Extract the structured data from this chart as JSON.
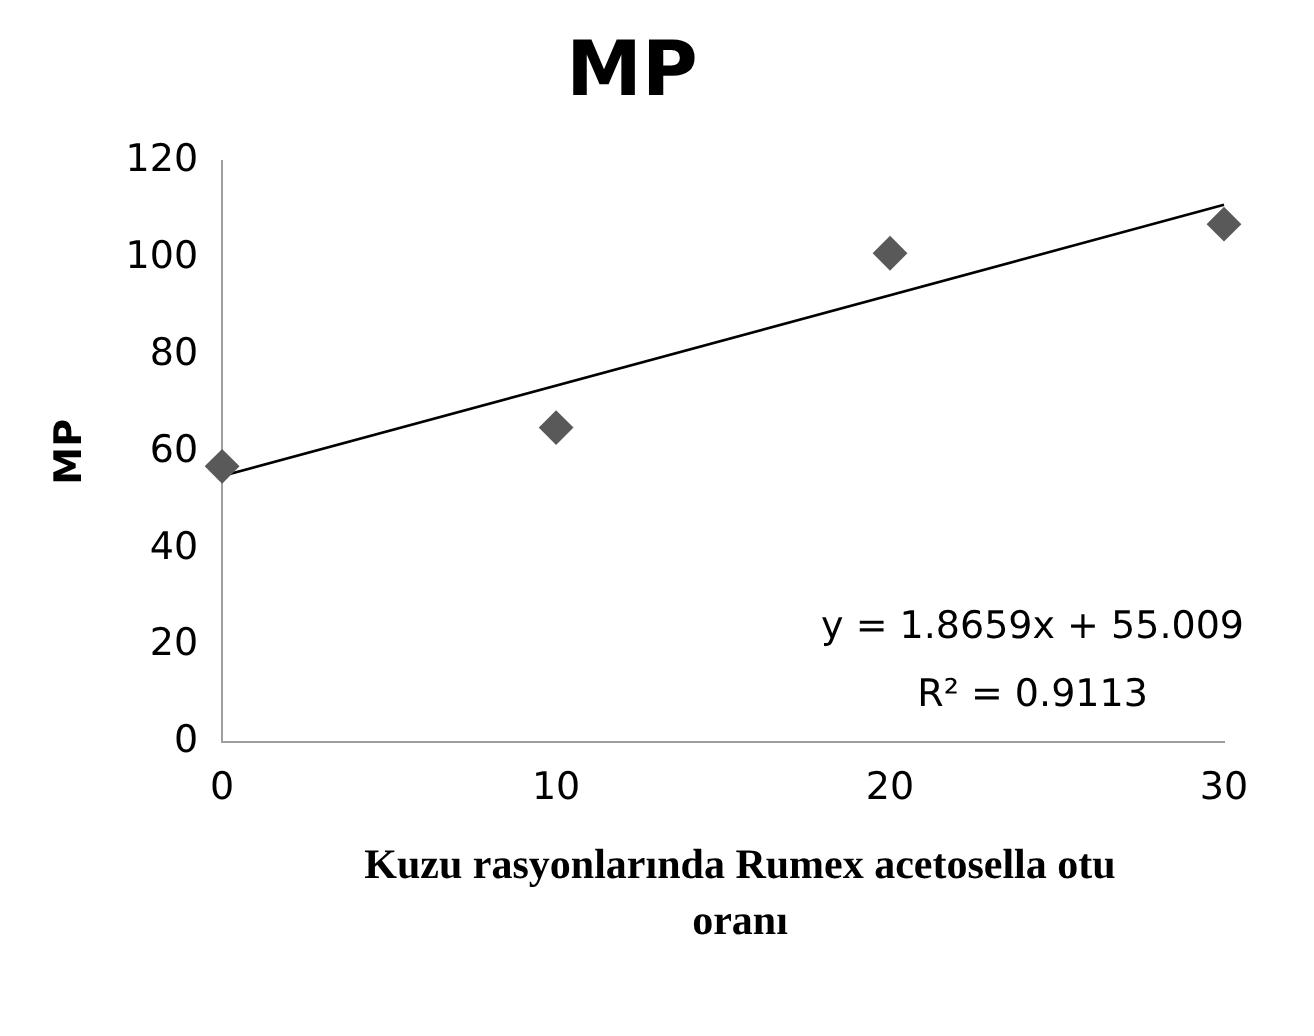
{
  "chart_data": {
    "type": "scatter",
    "title": "MP",
    "xlabel": "Kuzu rasyonlarında Rumex acetosella otu oranı",
    "ylabel": "MP",
    "x": [
      0,
      10,
      20,
      30
    ],
    "xlim": [
      0,
      30
    ],
    "xticks": [
      0,
      10,
      20,
      30
    ],
    "ylim": [
      0,
      120
    ],
    "yticks": [
      0,
      20,
      40,
      60,
      80,
      100,
      120
    ],
    "marker": "diamond",
    "grid": false,
    "legend": false,
    "series": [
      {
        "color": "#595959",
        "values": [
          57,
          65,
          101,
          107
        ]
      },
      {
        "type": "line",
        "marker": "none",
        "color": "#000000",
        "x": [
          0,
          30
        ],
        "values": [
          55,
          111
        ]
      }
    ],
    "annotations": [
      "y = 1.8659x + 55.009",
      "R² = 0.9113"
    ]
  }
}
